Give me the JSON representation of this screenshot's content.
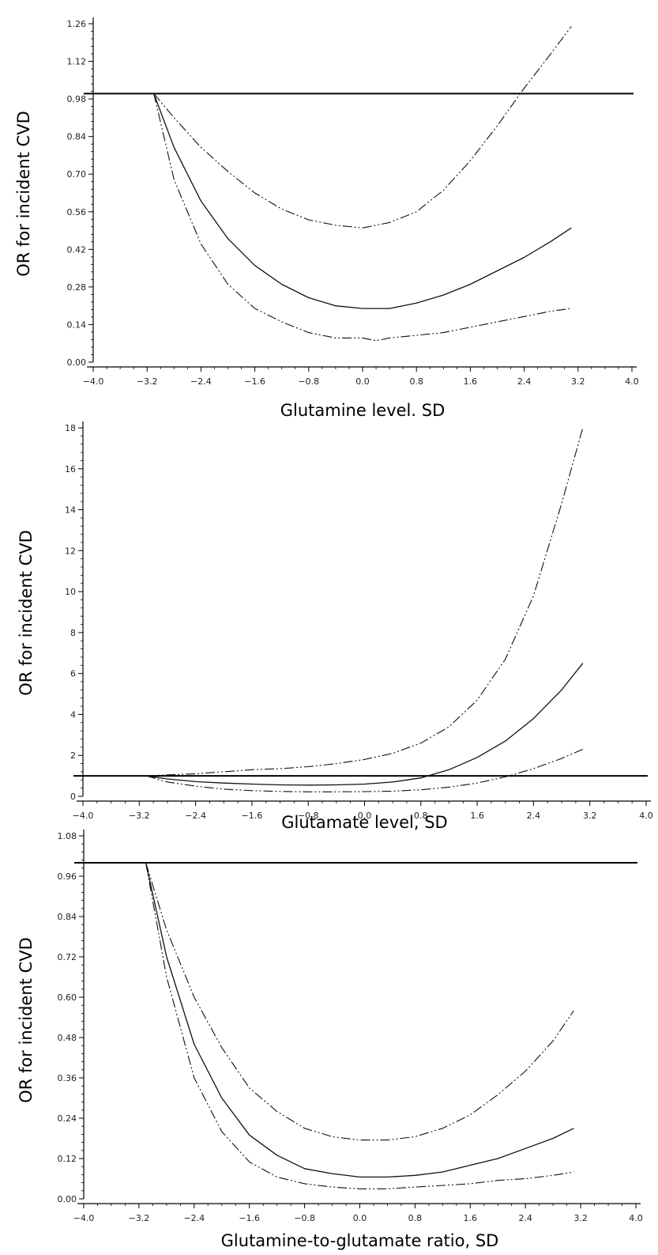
{
  "chart_data": [
    {
      "type": "line",
      "xlabel": "Glutamine level. SD",
      "ylabel": "OR for incident CVD",
      "xlim": [
        -4.0,
        4.0
      ],
      "ylim": [
        0.0,
        1.26
      ],
      "x_ticks": [
        "−4.0",
        "−3.2",
        "−2.4",
        "−1.6",
        "−0.8",
        "0.0",
        "0.8",
        "1.6",
        "2.4",
        "3.2",
        "4.0"
      ],
      "y_ticks": [
        "0.00",
        "0.14",
        "0.28",
        "0.42",
        "0.56",
        "0.70",
        "0.84",
        "0.98",
        "1.12",
        "1.26"
      ],
      "reference_line": 1.0,
      "series": [
        {
          "style": "solid",
          "x": [
            -3.1,
            -2.8,
            -2.4,
            -2.0,
            -1.6,
            -1.2,
            -0.8,
            -0.4,
            0.0,
            0.2,
            0.4,
            0.8,
            1.2,
            1.6,
            2.0,
            2.4,
            2.8,
            3.1
          ],
          "values": [
            1.0,
            0.8,
            0.6,
            0.46,
            0.36,
            0.29,
            0.24,
            0.21,
            0.2,
            0.2,
            0.2,
            0.22,
            0.25,
            0.29,
            0.34,
            0.39,
            0.45,
            0.5
          ]
        },
        {
          "style": "dash-dot-dot",
          "x": [
            -3.1,
            -2.8,
            -2.4,
            -2.0,
            -1.6,
            -1.2,
            -0.8,
            -0.4,
            0.0,
            0.4,
            0.8,
            1.2,
            1.6,
            2.0,
            2.4,
            2.8,
            3.1
          ],
          "values": [
            1.0,
            0.91,
            0.8,
            0.71,
            0.63,
            0.57,
            0.53,
            0.51,
            0.5,
            0.52,
            0.56,
            0.64,
            0.75,
            0.88,
            1.02,
            1.15,
            1.25
          ]
        },
        {
          "style": "dash-dot-dot",
          "x": [
            -3.1,
            -2.8,
            -2.4,
            -2.0,
            -1.6,
            -1.2,
            -0.8,
            -0.4,
            0.0,
            0.2,
            0.4,
            0.8,
            1.2,
            1.6,
            2.0,
            2.4,
            2.8,
            3.1
          ],
          "values": [
            1.0,
            0.68,
            0.44,
            0.29,
            0.2,
            0.15,
            0.11,
            0.09,
            0.09,
            0.08,
            0.09,
            0.1,
            0.11,
            0.13,
            0.15,
            0.17,
            0.19,
            0.2
          ]
        }
      ]
    },
    {
      "type": "line",
      "xlabel": "Glutamate level, SD",
      "ylabel": "OR for incident CVD",
      "xlim": [
        -4.0,
        4.0
      ],
      "ylim": [
        0,
        18
      ],
      "x_ticks": [
        "−4.0",
        "−3.2",
        "−2.4",
        "−1.6",
        "−0.8",
        "0.0",
        "0.8",
        "1.6",
        "2.4",
        "3.2",
        "4.0"
      ],
      "y_ticks": [
        "0",
        "2",
        "4",
        "6",
        "8",
        "10",
        "12",
        "14",
        "16",
        "18"
      ],
      "reference_line": 1.0,
      "series": [
        {
          "style": "solid",
          "x": [
            -3.1,
            -2.8,
            -2.4,
            -2.0,
            -1.6,
            -1.2,
            -0.8,
            -0.4,
            0.0,
            0.4,
            0.8,
            1.2,
            1.6,
            2.0,
            2.4,
            2.8,
            3.1
          ],
          "values": [
            1.0,
            0.85,
            0.72,
            0.65,
            0.6,
            0.56,
            0.55,
            0.56,
            0.6,
            0.7,
            0.9,
            1.3,
            1.9,
            2.7,
            3.8,
            5.2,
            6.5
          ]
        },
        {
          "style": "dash-dot-dot",
          "x": [
            -3.1,
            -2.8,
            -2.4,
            -2.0,
            -1.6,
            -1.2,
            -0.8,
            -0.4,
            0.0,
            0.4,
            0.8,
            1.2,
            1.6,
            2.0,
            2.4,
            2.8,
            3.1
          ],
          "values": [
            1.0,
            1.05,
            1.1,
            1.2,
            1.3,
            1.35,
            1.45,
            1.6,
            1.8,
            2.1,
            2.6,
            3.4,
            4.7,
            6.7,
            9.8,
            14.3,
            18.0
          ]
        },
        {
          "style": "dash-dot-dot",
          "x": [
            -3.1,
            -2.8,
            -2.4,
            -2.0,
            -1.6,
            -1.2,
            -0.8,
            -0.4,
            0.0,
            0.4,
            0.8,
            1.2,
            1.6,
            2.0,
            2.4,
            2.8,
            3.1
          ],
          "values": [
            1.0,
            0.7,
            0.5,
            0.35,
            0.28,
            0.24,
            0.22,
            0.22,
            0.23,
            0.25,
            0.32,
            0.45,
            0.65,
            0.95,
            1.35,
            1.85,
            2.3
          ]
        }
      ]
    },
    {
      "type": "line",
      "xlabel": "Glutamine-to-glutamate ratio, SD",
      "ylabel": "OR for incident CVD",
      "xlim": [
        -4.0,
        4.0
      ],
      "ylim": [
        0.0,
        1.08
      ],
      "x_ticks": [
        "−4.0",
        "−3.2",
        "−2.4",
        "−1.6",
        "−0.8",
        "0.0",
        "0.8",
        "1.6",
        "2.4",
        "3.2",
        "4.0"
      ],
      "y_ticks": [
        "0.00",
        "0.12",
        "0.24",
        "0.36",
        "0.48",
        "0.60",
        "0.72",
        "0.84",
        "0.96",
        "1.08"
      ],
      "reference_line": 1.0,
      "series": [
        {
          "style": "solid",
          "x": [
            -3.1,
            -2.8,
            -2.4,
            -2.0,
            -1.6,
            -1.2,
            -0.8,
            -0.4,
            0.0,
            0.4,
            0.8,
            1.2,
            1.6,
            2.0,
            2.4,
            2.8,
            3.1
          ],
          "values": [
            1.0,
            0.72,
            0.46,
            0.3,
            0.19,
            0.13,
            0.09,
            0.075,
            0.065,
            0.065,
            0.07,
            0.08,
            0.1,
            0.12,
            0.15,
            0.18,
            0.21
          ]
        },
        {
          "style": "dash-dot-dot",
          "x": [
            -3.1,
            -2.8,
            -2.4,
            -2.0,
            -1.6,
            -1.2,
            -0.8,
            -0.4,
            0.0,
            0.4,
            0.8,
            1.2,
            1.6,
            2.0,
            2.4,
            2.8,
            3.1
          ],
          "values": [
            1.0,
            0.8,
            0.6,
            0.45,
            0.33,
            0.26,
            0.21,
            0.185,
            0.175,
            0.175,
            0.185,
            0.21,
            0.25,
            0.31,
            0.38,
            0.47,
            0.56
          ]
        },
        {
          "style": "dash-dot-dot",
          "x": [
            -3.1,
            -2.8,
            -2.4,
            -2.0,
            -1.6,
            -1.2,
            -0.8,
            -0.4,
            0.0,
            0.4,
            0.8,
            1.2,
            1.6,
            2.0,
            2.4,
            2.8,
            3.1
          ],
          "values": [
            1.0,
            0.66,
            0.36,
            0.2,
            0.11,
            0.065,
            0.045,
            0.035,
            0.03,
            0.03,
            0.035,
            0.04,
            0.045,
            0.055,
            0.06,
            0.07,
            0.08
          ]
        }
      ]
    }
  ]
}
